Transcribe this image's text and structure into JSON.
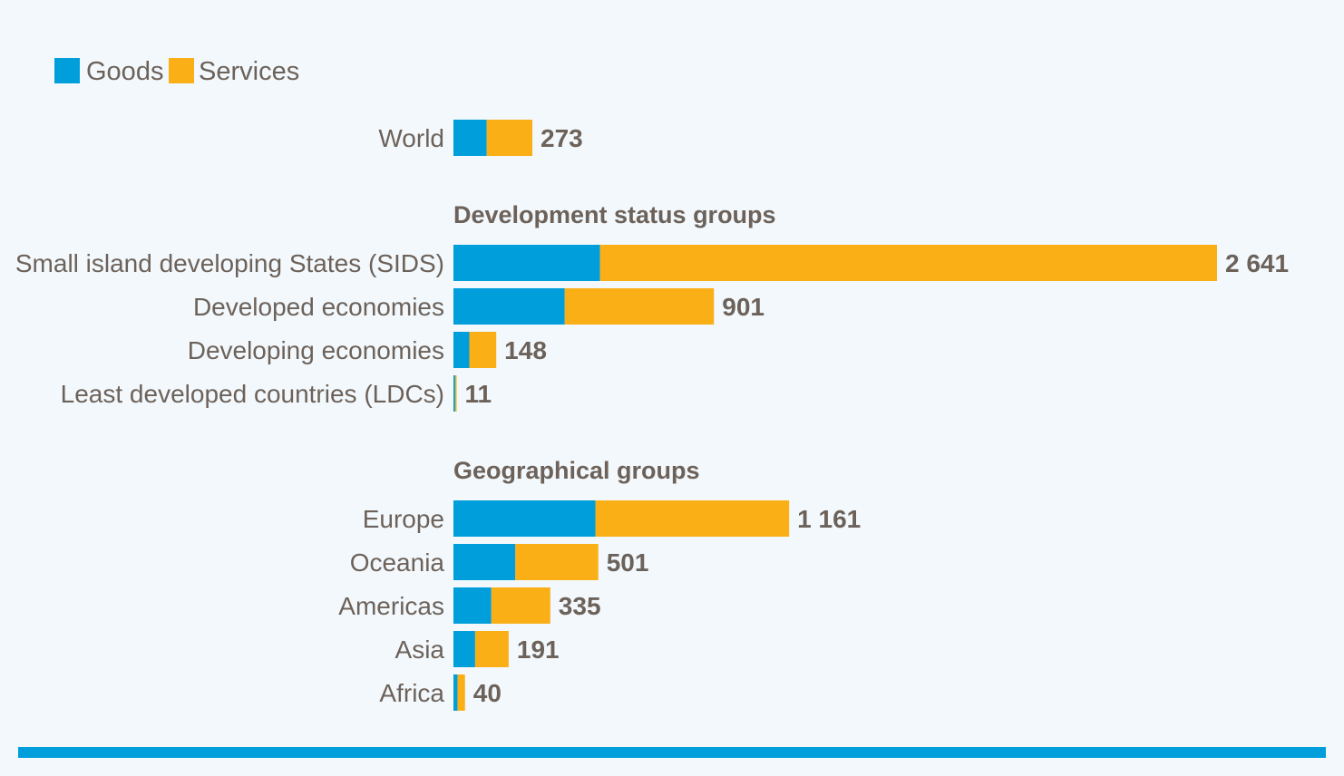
{
  "chart_data": {
    "type": "bar",
    "orientation": "horizontal",
    "stacked": true,
    "legend": {
      "position": "top-left",
      "entries": [
        "Goods",
        "Services"
      ]
    },
    "colors": {
      "Goods": "#009edb",
      "Services": "#fbaf17",
      "text": "#6d625a",
      "background": "#f2f8fc",
      "rule": "#009edb"
    },
    "grid": false,
    "xlim": [
      0,
      2641
    ],
    "groups": [
      {
        "heading": "",
        "rows": [
          {
            "category": "World",
            "goods": 115,
            "services": 158,
            "total": 273,
            "total_label": "273"
          }
        ]
      },
      {
        "heading": "Development status groups",
        "rows": [
          {
            "category": "Small island developing States (SIDS)",
            "goods": 507,
            "services": 2134,
            "total": 2641,
            "total_label": "2 641"
          },
          {
            "category": "Developed economies",
            "goods": 385,
            "services": 516,
            "total": 901,
            "total_label": "901"
          },
          {
            "category": "Developing economies",
            "goods": 55,
            "services": 93,
            "total": 148,
            "total_label": "148"
          },
          {
            "category": "Least developed countries (LDCs)",
            "goods": 6,
            "services": 5,
            "total": 11,
            "total_label": "11"
          }
        ]
      },
      {
        "heading": "Geographical groups",
        "rows": [
          {
            "category": "Europe",
            "goods": 491,
            "services": 670,
            "total": 1161,
            "total_label": "1 161"
          },
          {
            "category": "Oceania",
            "goods": 214,
            "services": 287,
            "total": 501,
            "total_label": "501"
          },
          {
            "category": "Americas",
            "goods": 131,
            "services": 204,
            "total": 335,
            "total_label": "335"
          },
          {
            "category": "Asia",
            "goods": 75,
            "services": 116,
            "total": 191,
            "total_label": "191"
          },
          {
            "category": "Africa",
            "goods": 14,
            "services": 26,
            "total": 40,
            "total_label": "40"
          }
        ]
      }
    ]
  }
}
